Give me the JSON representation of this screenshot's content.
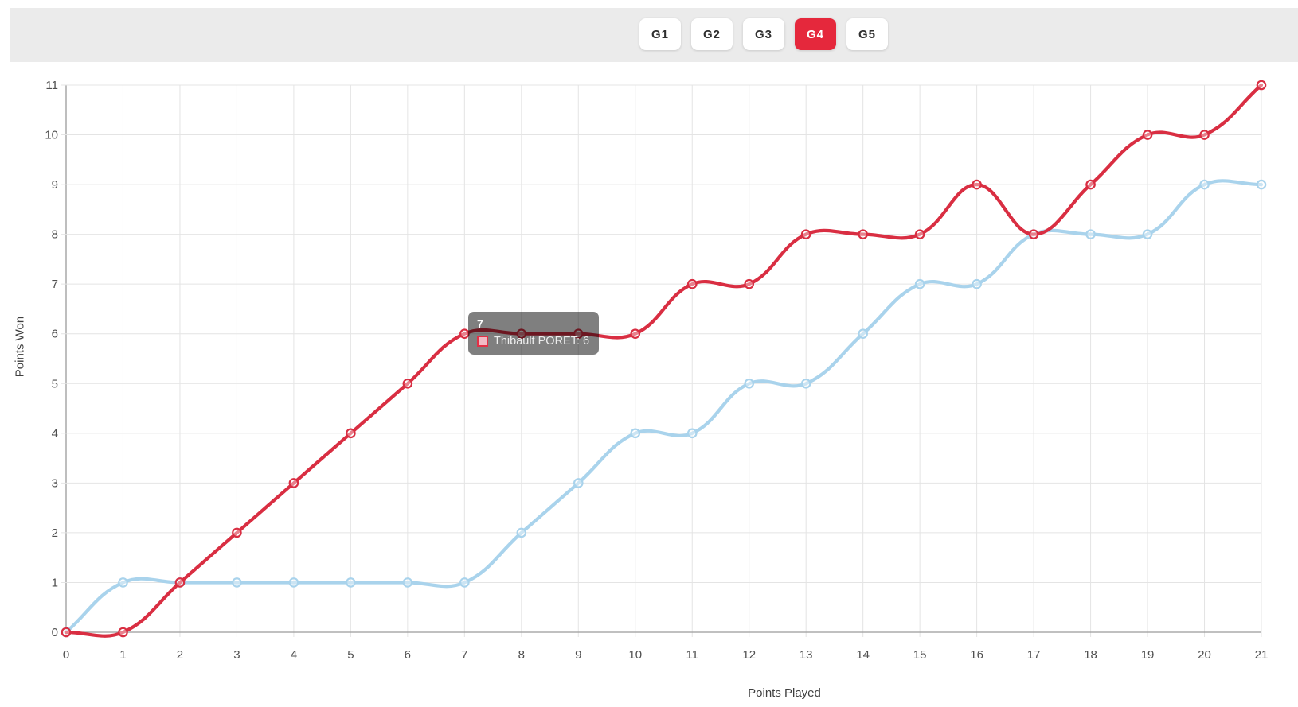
{
  "tabs": [
    {
      "label": "G1",
      "active": false
    },
    {
      "label": "G2",
      "active": false
    },
    {
      "label": "G3",
      "active": false
    },
    {
      "label": "G4",
      "active": true
    },
    {
      "label": "G5",
      "active": false
    }
  ],
  "tooltip": {
    "title": "7",
    "series_label": "Thibault PORET: 6",
    "swatch_fill": "#f1bac5",
    "swatch_border": "#e23046"
  },
  "chart_data": {
    "type": "line",
    "title": "",
    "xlabel": "Points Played",
    "ylabel": "Points Won",
    "x": [
      0,
      1,
      2,
      3,
      4,
      5,
      6,
      7,
      8,
      9,
      10,
      11,
      12,
      13,
      14,
      15,
      16,
      17,
      18,
      19,
      20,
      21
    ],
    "xlim": [
      0,
      21
    ],
    "ylim": [
      0,
      11
    ],
    "grid": true,
    "legend_position": "none",
    "line_tension": 0.4,
    "series": [
      {
        "name": "Thibault PORET",
        "color": "#d92e42",
        "values": [
          0,
          0,
          1,
          2,
          3,
          4,
          5,
          6,
          6,
          6,
          6,
          7,
          7,
          8,
          8,
          8,
          9,
          8,
          9,
          10,
          10,
          11
        ]
      },
      {
        "name": "",
        "color": "#a9d3ec",
        "values": [
          0,
          1,
          1,
          1,
          1,
          1,
          1,
          1,
          2,
          3,
          4,
          4,
          5,
          5,
          6,
          7,
          7,
          8,
          8,
          8,
          9,
          9
        ]
      }
    ]
  },
  "colors": {
    "accent_red": "#e5283c",
    "header_bar": "#ebebeb",
    "grid": "#e4e4e4",
    "axis": "#9b9b9b",
    "tick_text": "#4f4f4f",
    "point_fill": "rgba(255,255,255,0.4)"
  }
}
